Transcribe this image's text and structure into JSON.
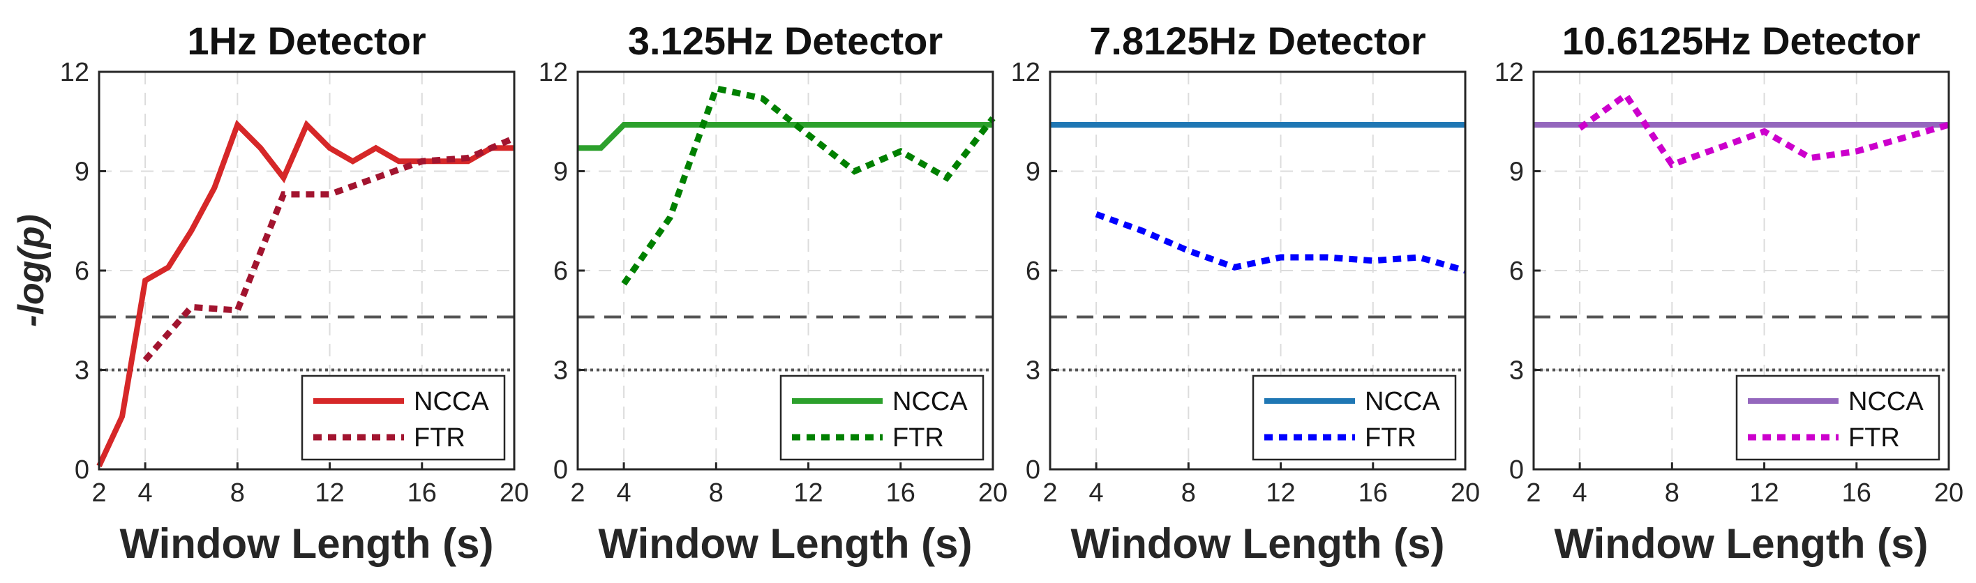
{
  "chart_data": [
    {
      "type": "line",
      "title": "1Hz Detector",
      "xlabel": "Window Length (s)",
      "ylabel": "-log(p)",
      "xlim": [
        2,
        20
      ],
      "ylim": [
        0,
        12
      ],
      "xticks": [
        2,
        4,
        8,
        12,
        16,
        20
      ],
      "yticks": [
        0,
        3,
        6,
        9,
        12
      ],
      "grid": true,
      "legend_position": "bottom-right",
      "reference_lines": [
        {
          "y": 4.6,
          "style": "dashed",
          "color": "#555555"
        },
        {
          "y": 3.0,
          "style": "dotted",
          "color": "#555555"
        }
      ],
      "series": [
        {
          "name": "NCCA",
          "style": "solid",
          "color": "#d62728",
          "x": [
            2,
            3,
            4,
            5,
            6,
            7,
            8,
            9,
            10,
            11,
            12,
            13,
            14,
            15,
            16,
            17,
            18,
            19,
            20
          ],
          "y": [
            0.1,
            1.6,
            5.7,
            6.1,
            7.2,
            8.5,
            10.4,
            9.7,
            8.8,
            10.4,
            9.7,
            9.3,
            9.7,
            9.3,
            9.3,
            9.3,
            9.3,
            9.7,
            9.7
          ]
        },
        {
          "name": "FTR",
          "style": "dotted",
          "color": "#a2142f",
          "x": [
            4,
            6,
            8,
            10,
            12,
            14,
            16,
            18,
            20
          ],
          "y": [
            3.3,
            4.9,
            4.8,
            8.3,
            8.3,
            8.8,
            9.3,
            9.4,
            10.0
          ]
        }
      ]
    },
    {
      "type": "line",
      "title": "3.125Hz Detector",
      "xlabel": "Window Length (s)",
      "ylabel": "",
      "xlim": [
        2,
        20
      ],
      "ylim": [
        0,
        12
      ],
      "xticks": [
        2,
        4,
        8,
        12,
        16,
        20
      ],
      "yticks": [
        0,
        3,
        6,
        9,
        12
      ],
      "grid": true,
      "legend_position": "bottom-right",
      "reference_lines": [
        {
          "y": 4.6,
          "style": "dashed",
          "color": "#555555"
        },
        {
          "y": 3.0,
          "style": "dotted",
          "color": "#555555"
        }
      ],
      "series": [
        {
          "name": "NCCA",
          "style": "solid",
          "color": "#2ca02c",
          "x": [
            2,
            3,
            4,
            5,
            6,
            7,
            8,
            9,
            10,
            11,
            12,
            13,
            14,
            15,
            16,
            17,
            18,
            19,
            20
          ],
          "y": [
            9.7,
            9.7,
            10.4,
            10.4,
            10.4,
            10.4,
            10.4,
            10.4,
            10.4,
            10.4,
            10.4,
            10.4,
            10.4,
            10.4,
            10.4,
            10.4,
            10.4,
            10.4,
            10.4
          ]
        },
        {
          "name": "FTR",
          "style": "dotted",
          "color": "#008000",
          "x": [
            4,
            6,
            8,
            10,
            12,
            14,
            16,
            18,
            20
          ],
          "y": [
            5.6,
            7.6,
            11.5,
            11.2,
            10.1,
            9.0,
            9.6,
            8.8,
            10.6
          ]
        }
      ]
    },
    {
      "type": "line",
      "title": "7.8125Hz Detector",
      "xlabel": "Window Length (s)",
      "ylabel": "",
      "xlim": [
        2,
        20
      ],
      "ylim": [
        0,
        12
      ],
      "xticks": [
        2,
        4,
        8,
        12,
        16,
        20
      ],
      "yticks": [
        0,
        3,
        6,
        9,
        12
      ],
      "grid": true,
      "legend_position": "bottom-right",
      "reference_lines": [
        {
          "y": 4.6,
          "style": "dashed",
          "color": "#555555"
        },
        {
          "y": 3.0,
          "style": "dotted",
          "color": "#555555"
        }
      ],
      "series": [
        {
          "name": "NCCA",
          "style": "solid",
          "color": "#1f77b4",
          "x": [
            2,
            3,
            4,
            5,
            6,
            7,
            8,
            9,
            10,
            11,
            12,
            13,
            14,
            15,
            16,
            17,
            18,
            19,
            20
          ],
          "y": [
            10.4,
            10.4,
            10.4,
            10.4,
            10.4,
            10.4,
            10.4,
            10.4,
            10.4,
            10.4,
            10.4,
            10.4,
            10.4,
            10.4,
            10.4,
            10.4,
            10.4,
            10.4,
            10.4
          ]
        },
        {
          "name": "FTR",
          "style": "dotted",
          "color": "#0000ff",
          "x": [
            4,
            6,
            8,
            10,
            12,
            14,
            16,
            18,
            20
          ],
          "y": [
            7.7,
            7.2,
            6.6,
            6.1,
            6.4,
            6.4,
            6.3,
            6.4,
            6.0
          ]
        }
      ]
    },
    {
      "type": "line",
      "title": "10.6125Hz Detector",
      "xlabel": "Window Length (s)",
      "ylabel": "",
      "xlim": [
        2,
        20
      ],
      "ylim": [
        0,
        12
      ],
      "xticks": [
        2,
        4,
        8,
        12,
        16,
        20
      ],
      "yticks": [
        0,
        3,
        6,
        9,
        12
      ],
      "grid": true,
      "legend_position": "bottom-right",
      "reference_lines": [
        {
          "y": 4.6,
          "style": "dashed",
          "color": "#555555"
        },
        {
          "y": 3.0,
          "style": "dotted",
          "color": "#555555"
        }
      ],
      "series": [
        {
          "name": "NCCA",
          "style": "solid",
          "color": "#9467bd",
          "x": [
            2,
            3,
            4,
            5,
            6,
            7,
            8,
            9,
            10,
            11,
            12,
            13,
            14,
            15,
            16,
            17,
            18,
            19,
            20
          ],
          "y": [
            10.4,
            10.4,
            10.4,
            10.4,
            10.4,
            10.4,
            10.4,
            10.4,
            10.4,
            10.4,
            10.4,
            10.4,
            10.4,
            10.4,
            10.4,
            10.4,
            10.4,
            10.4,
            10.4
          ]
        },
        {
          "name": "FTR",
          "style": "dotted",
          "color": "#cc00cc",
          "x": [
            4,
            6,
            8,
            10,
            12,
            14,
            16,
            18,
            20
          ],
          "y": [
            10.3,
            11.3,
            9.2,
            9.7,
            10.2,
            9.4,
            9.6,
            10.0,
            10.4
          ]
        }
      ]
    }
  ]
}
